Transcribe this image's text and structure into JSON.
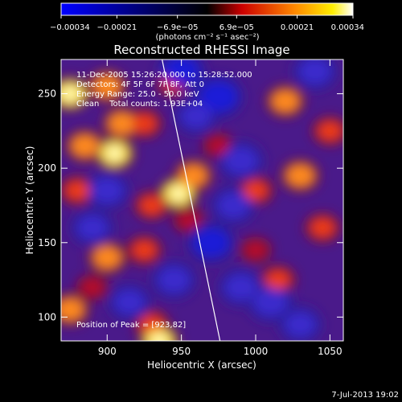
{
  "chart_data": {
    "type": "heatmap",
    "title": "Reconstructed RHESSI Image",
    "xlabel": "Heliocentric X (arcsec)",
    "ylabel": "Heliocentric Y (arcsec)",
    "xlim": [
      869,
      1059
    ],
    "ylim": [
      84,
      273
    ],
    "xticks": [
      900,
      950,
      1000,
      1050
    ],
    "yticks": [
      100,
      150,
      200,
      250
    ],
    "colorbar": {
      "min": -0.00034,
      "max": 0.00034,
      "ticks": [
        -0.00034,
        -0.00021,
        -6.9e-05,
        6.9e-05,
        0.00021,
        0.00034
      ],
      "tick_labels": [
        "−0.00034",
        "−0.00021",
        "−6.9e−05",
        "6.9e−05",
        "0.00021",
        "0.00034"
      ],
      "units_label": "(photons cm⁻² s⁻¹ asec⁻²)",
      "colormap": [
        "#0000ff",
        "#000000",
        "#ff0000",
        "#ffff00",
        "#ffffff"
      ]
    },
    "annotations": {
      "time_range": "11-Dec-2005 15:26:20.000 to 15:28:52.000",
      "detectors": "Detectors: 4F 5F 6F 7F 8F, Att 0",
      "energy": "Energy Range: 25.0 - 50.0 keV",
      "clean": "Clean    Total counts: 1.93E+04",
      "peak": "Position of Peak = [923,82]"
    },
    "limb_line": {
      "x": [
        937,
        976
      ],
      "y": [
        273,
        84
      ]
    },
    "blobs": [
      {
        "x": 875,
        "y": 250,
        "v": 0.9
      },
      {
        "x": 885,
        "y": 215,
        "v": 0.75
      },
      {
        "x": 880,
        "y": 185,
        "v": 0.6
      },
      {
        "x": 875,
        "y": 105,
        "v": 0.7
      },
      {
        "x": 900,
        "y": 255,
        "v": 0.7
      },
      {
        "x": 910,
        "y": 230,
        "v": 0.8
      },
      {
        "x": 905,
        "y": 210,
        "v": 1.0
      },
      {
        "x": 925,
        "y": 230,
        "v": 0.6
      },
      {
        "x": 930,
        "y": 175,
        "v": 0.55
      },
      {
        "x": 900,
        "y": 140,
        "v": 0.75
      },
      {
        "x": 925,
        "y": 145,
        "v": 0.6
      },
      {
        "x": 890,
        "y": 120,
        "v": 0.5
      },
      {
        "x": 930,
        "y": 95,
        "v": 0.65
      },
      {
        "x": 935,
        "y": 84,
        "v": 0.9
      },
      {
        "x": 948,
        "y": 183,
        "v": 0.9
      },
      {
        "x": 955,
        "y": 165,
        "v": 0.5
      },
      {
        "x": 960,
        "y": 235,
        "v": 0.55
      },
      {
        "x": 958,
        "y": 195,
        "v": 0.75
      },
      {
        "x": 945,
        "y": 258,
        "v": 0.6
      },
      {
        "x": 975,
        "y": 215,
        "v": 0.5
      },
      {
        "x": 1000,
        "y": 185,
        "v": 0.55
      },
      {
        "x": 1020,
        "y": 245,
        "v": 0.8
      },
      {
        "x": 1030,
        "y": 195,
        "v": 0.7
      },
      {
        "x": 1045,
        "y": 160,
        "v": 0.6
      },
      {
        "x": 1000,
        "y": 145,
        "v": 0.5
      },
      {
        "x": 1015,
        "y": 125,
        "v": 0.55
      },
      {
        "x": 1050,
        "y": 225,
        "v": 0.6
      },
      {
        "x": 900,
        "y": 185,
        "v": -0.6
      },
      {
        "x": 950,
        "y": 265,
        "v": -0.8
      },
      {
        "x": 975,
        "y": 248,
        "v": -0.9
      },
      {
        "x": 960,
        "y": 235,
        "v": -0.5
      },
      {
        "x": 990,
        "y": 205,
        "v": -0.7
      },
      {
        "x": 985,
        "y": 175,
        "v": -0.6
      },
      {
        "x": 970,
        "y": 150,
        "v": -0.8
      },
      {
        "x": 990,
        "y": 120,
        "v": -0.6
      },
      {
        "x": 1010,
        "y": 110,
        "v": -0.7
      },
      {
        "x": 1030,
        "y": 95,
        "v": -0.5
      },
      {
        "x": 890,
        "y": 160,
        "v": -0.5
      },
      {
        "x": 915,
        "y": 110,
        "v": -0.5
      },
      {
        "x": 1040,
        "y": 265,
        "v": -0.6
      },
      {
        "x": 945,
        "y": 125,
        "v": -0.6
      }
    ]
  },
  "footer_timestamp": "7-Jul-2013 19:02"
}
